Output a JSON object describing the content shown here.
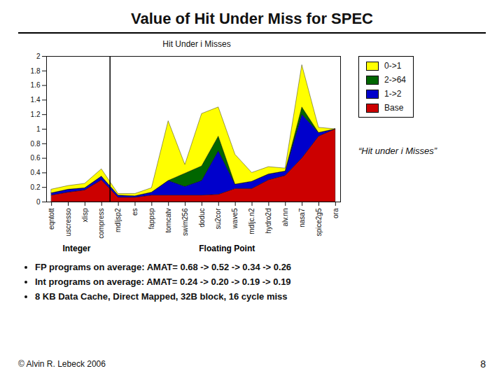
{
  "chart_data": {
    "type": "area",
    "stacked": true,
    "title": "Value of Hit Under Miss for SPEC",
    "subtitle": "Hit Under i Misses",
    "categories": [
      "eqntott",
      "uscresso",
      "xlisp",
      "compress",
      "mdljsp2",
      "es",
      "fappsp",
      "tomcatv",
      "swim256",
      "doduc",
      "su2cor",
      "wave5",
      "mdljc.n2",
      "hydro2d",
      "alv.nn",
      "nasa7",
      "spice2g5",
      "ora"
    ],
    "series": [
      {
        "name": "Base",
        "color": "#CC0000",
        "values": [
          0.09,
          0.13,
          0.16,
          0.3,
          0.06,
          0.06,
          0.09,
          0.09,
          0.09,
          0.09,
          0.1,
          0.18,
          0.18,
          0.3,
          0.36,
          0.6,
          0.9,
          1.0
        ]
      },
      {
        "name": "1->2",
        "color": "#0000CC",
        "values": [
          0.03,
          0.04,
          0.03,
          0.05,
          0.03,
          0.02,
          0.04,
          0.2,
          0.12,
          0.2,
          0.6,
          0.06,
          0.1,
          0.08,
          0.06,
          0.6,
          0.05,
          0.0
        ]
      },
      {
        "name": "2->64",
        "color": "#006600",
        "values": [
          0.0,
          0.0,
          0.0,
          0.0,
          0.0,
          0.0,
          0.0,
          0.0,
          0.18,
          0.2,
          0.2,
          0.0,
          0.0,
          0.0,
          0.0,
          0.1,
          0.0,
          0.0
        ]
      },
      {
        "name": "0->1",
        "color": "#FFFF00",
        "values": [
          0.05,
          0.05,
          0.06,
          0.1,
          0.02,
          0.03,
          0.06,
          0.82,
          0.12,
          0.72,
          0.4,
          0.41,
          0.12,
          0.1,
          0.04,
          0.58,
          0.07,
          0.0
        ]
      }
    ],
    "ylim": [
      0,
      2
    ],
    "yticks": [
      0,
      0.2,
      0.4,
      0.6,
      0.8,
      1,
      1.2,
      1.4,
      1.6,
      1.8,
      2
    ],
    "grid": false,
    "legend": "right",
    "groups": [
      {
        "label": "Integer",
        "size": 4
      },
      {
        "label": "Floating Point",
        "size": 14
      }
    ],
    "annotation": "“Hit under i Misses”",
    "bullets": [
      "FP programs on average: AMAT= 0.68 -> 0.52 -> 0.34 -> 0.26",
      "Int programs on average: AMAT= 0.24 -> 0.20 -> 0.19 -> 0.19",
      "8 KB Data Cache, Direct Mapped, 32B block, 16 cycle miss"
    ],
    "footer": "© Alvin R. Lebeck 2006",
    "page_number": "8"
  }
}
